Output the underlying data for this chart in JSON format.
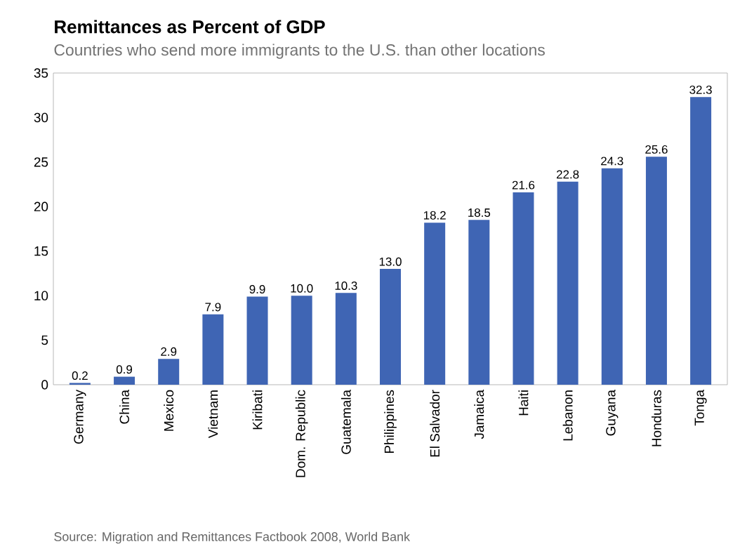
{
  "chart_data": {
    "type": "bar",
    "title": "Remittances as Percent of GDP",
    "subtitle": "Countries who send more immigrants to the U.S. than other locations",
    "categories": [
      "Germany",
      "China",
      "Mexico",
      "Vietnam",
      "Kiribati",
      "Dom. Republic",
      "Guatemala",
      "Philippines",
      "El Salvador",
      "Jamaica",
      "Haiti",
      "Lebanon",
      "Guyana",
      "Honduras",
      "Tonga"
    ],
    "values": [
      0.2,
      0.9,
      2.9,
      7.9,
      9.9,
      10.0,
      10.3,
      13.0,
      18.2,
      18.5,
      21.6,
      22.8,
      24.3,
      25.6,
      32.3
    ],
    "value_labels": [
      "0.2",
      "0.9",
      "2.9",
      "7.9",
      "9.9",
      "10.0",
      "10.3",
      "13.0",
      "18.2",
      "18.5",
      "21.6",
      "22.8",
      "24.3",
      "25.6",
      "32.3"
    ],
    "color": "#3f65b4",
    "ylim": [
      0,
      35
    ],
    "yticks": [
      0,
      5,
      10,
      15,
      20,
      25,
      30,
      35
    ],
    "annotations": [
      "Source: Migration and Remittances Factbook 2008, World Bank"
    ]
  }
}
